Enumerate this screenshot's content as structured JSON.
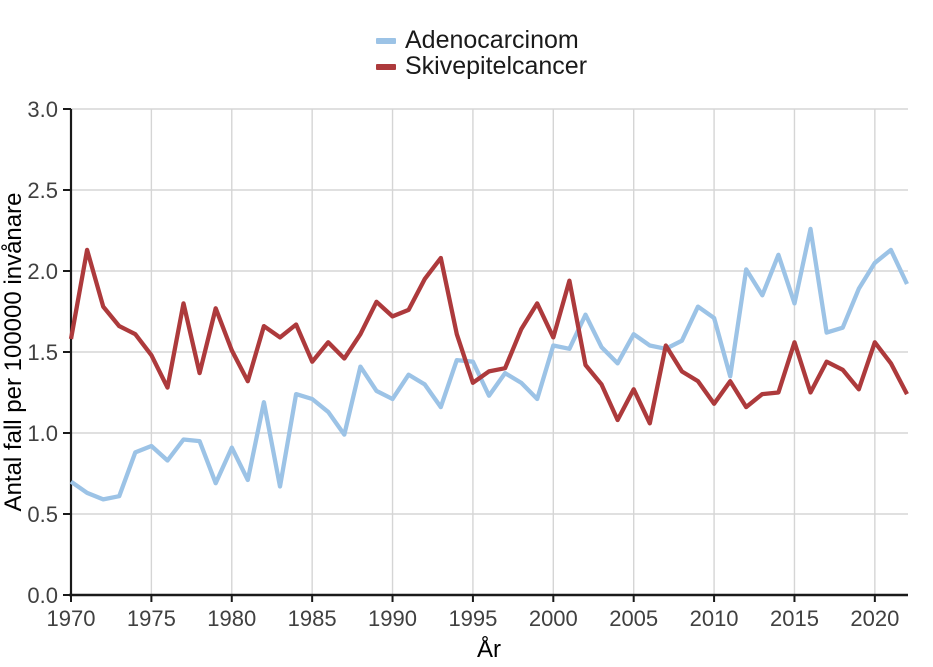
{
  "legend": {
    "items": [
      {
        "label": "Adenocarcinom",
        "color": "#9CC3E6"
      },
      {
        "label": "Skivepitelcancer",
        "color": "#AD3A3C"
      }
    ]
  },
  "axes": {
    "x_title": "År",
    "y_title": "Antal fall per 100000 invånare"
  },
  "colors": {
    "background": "#ffffff",
    "gridline": "#d5d5d5",
    "axis_line": "#1a1a1a",
    "tick_text": "#404040",
    "series_adenocarcinom": "#9CC3E6",
    "series_skivepitelcancer": "#AD3A3C"
  },
  "chart_data": {
    "type": "line",
    "title": "",
    "xlabel": "År",
    "ylabel": "Antal fall per 100000 invånare",
    "xlim": [
      1970,
      2022
    ],
    "ylim": [
      0,
      3
    ],
    "grid": true,
    "legend_position": "top-center",
    "xticks": [
      1970,
      1975,
      1980,
      1985,
      1990,
      1995,
      2000,
      2005,
      2010,
      2015,
      2020
    ],
    "yticks": [
      0.0,
      0.5,
      1.0,
      1.5,
      2.0,
      2.5,
      3.0
    ],
    "ytick_labels": [
      "0.0",
      "0.5",
      "1.0",
      "1.5",
      "2.0",
      "2.5",
      "3.0"
    ],
    "x": [
      1970,
      1971,
      1972,
      1973,
      1974,
      1975,
      1976,
      1977,
      1978,
      1979,
      1980,
      1981,
      1982,
      1983,
      1984,
      1985,
      1986,
      1987,
      1988,
      1989,
      1990,
      1991,
      1992,
      1993,
      1994,
      1995,
      1996,
      1997,
      1998,
      1999,
      2000,
      2001,
      2002,
      2003,
      2004,
      2005,
      2006,
      2007,
      2008,
      2009,
      2010,
      2011,
      2012,
      2013,
      2014,
      2015,
      2016,
      2017,
      2018,
      2019,
      2020,
      2021,
      2022
    ],
    "series": [
      {
        "name": "Adenocarcinom",
        "color": "#9CC3E6",
        "values": [
          0.7,
          0.63,
          0.59,
          0.61,
          0.88,
          0.92,
          0.83,
          0.96,
          0.95,
          0.69,
          0.91,
          0.71,
          1.19,
          0.67,
          1.24,
          1.21,
          1.13,
          0.99,
          1.41,
          1.26,
          1.21,
          1.36,
          1.3,
          1.16,
          1.45,
          1.44,
          1.23,
          1.37,
          1.31,
          1.21,
          1.54,
          1.52,
          1.73,
          1.53,
          1.43,
          1.61,
          1.54,
          1.52,
          1.57,
          1.78,
          1.71,
          1.35,
          2.01,
          1.85,
          2.1,
          1.8,
          2.26,
          1.62,
          1.65,
          1.89,
          2.05,
          2.13,
          1.92
        ]
      },
      {
        "name": "Skivepitelcancer",
        "color": "#AD3A3C",
        "values": [
          1.58,
          2.13,
          1.78,
          1.66,
          1.61,
          1.48,
          1.28,
          1.8,
          1.37,
          1.77,
          1.51,
          1.32,
          1.66,
          1.59,
          1.67,
          1.44,
          1.56,
          1.46,
          1.61,
          1.81,
          1.72,
          1.76,
          1.95,
          2.08,
          1.61,
          1.31,
          1.38,
          1.4,
          1.64,
          1.8,
          1.59,
          1.94,
          1.42,
          1.3,
          1.08,
          1.27,
          1.06,
          1.54,
          1.38,
          1.32,
          1.18,
          1.32,
          1.16,
          1.24,
          1.25,
          1.56,
          1.25,
          1.44,
          1.39,
          1.27,
          1.56,
          1.43,
          1.24
        ]
      }
    ]
  }
}
